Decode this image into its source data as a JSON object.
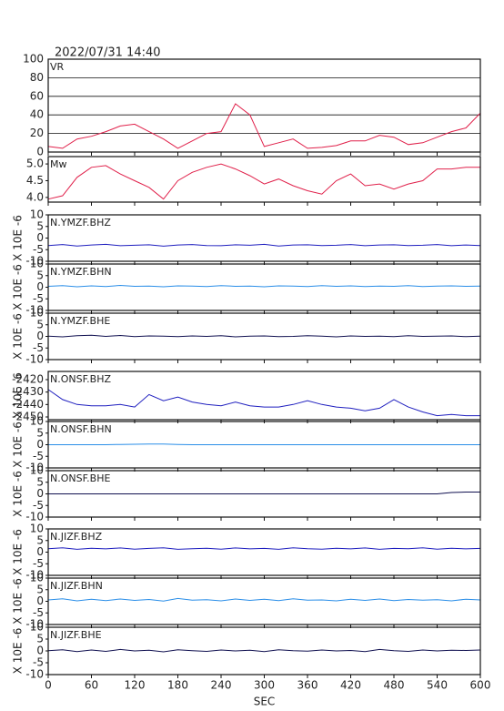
{
  "title": "2022/07/31  14:40",
  "chart_data": [
    {
      "type": "line",
      "title": "VR",
      "color": "#e0204a",
      "grid": true,
      "xlim": [
        0,
        600
      ],
      "xticks": [
        0,
        60,
        120,
        180,
        240,
        300,
        360,
        420,
        480,
        540,
        600
      ],
      "x": [
        0,
        20,
        40,
        60,
        80,
        100,
        120,
        140,
        160,
        180,
        200,
        220,
        240,
        260,
        280,
        300,
        320,
        340,
        360,
        380,
        400,
        420,
        440,
        460,
        480,
        500,
        520,
        540,
        560,
        580,
        600
      ],
      "values": [
        6,
        4,
        14,
        17,
        22,
        28,
        30,
        22,
        14,
        4,
        12,
        20,
        22,
        52,
        40,
        6,
        10,
        14,
        4,
        5,
        7,
        12,
        12,
        18,
        16,
        8,
        10,
        16,
        22,
        26,
        42
      ],
      "ylim": [
        0,
        100
      ],
      "yticks": [
        0,
        20,
        40,
        60,
        80,
        100
      ]
    },
    {
      "type": "line",
      "title": "Mw",
      "color": "#e0204a",
      "grid": false,
      "xlim": [
        0,
        600
      ],
      "xticks": [
        0,
        60,
        120,
        180,
        240,
        300,
        360,
        420,
        480,
        540,
        600
      ],
      "x": [
        0,
        20,
        40,
        60,
        80,
        100,
        120,
        140,
        160,
        180,
        200,
        220,
        240,
        260,
        280,
        300,
        320,
        340,
        360,
        380,
        400,
        420,
        440,
        460,
        480,
        500,
        520,
        540,
        560,
        580,
        600
      ],
      "values": [
        3.95,
        4.05,
        4.6,
        4.9,
        4.95,
        4.7,
        4.5,
        4.3,
        3.95,
        4.5,
        4.75,
        4.9,
        5.0,
        4.85,
        4.65,
        4.4,
        4.55,
        4.35,
        4.2,
        4.1,
        4.5,
        4.7,
        4.35,
        4.4,
        4.25,
        4.4,
        4.5,
        4.85,
        4.85,
        4.9,
        4.9
      ],
      "ylim": [
        3.86,
        5.22
      ],
      "yticks": [
        {
          "value": 4,
          "label": "4.0"
        },
        {
          "value": 4.5,
          "label": "4.5"
        },
        {
          "value": 5,
          "label": "5.0"
        }
      ]
    },
    {
      "type": "line",
      "title": "N.YMZF.BHZ",
      "ylabel": "X 10E -6",
      "color": "#1f1fbf",
      "grid": false,
      "xlim": [
        0,
        600
      ],
      "xticks": [
        0,
        60,
        120,
        180,
        240,
        300,
        360,
        420,
        480,
        540,
        600
      ],
      "x": [
        0,
        20,
        40,
        60,
        80,
        100,
        120,
        140,
        160,
        180,
        200,
        220,
        240,
        260,
        280,
        300,
        320,
        340,
        360,
        380,
        400,
        420,
        440,
        460,
        480,
        500,
        520,
        540,
        560,
        580,
        600
      ],
      "values": [
        -3.2,
        -2.8,
        -3.4,
        -3.0,
        -2.7,
        -3.3,
        -3.1,
        -2.9,
        -3.5,
        -3.0,
        -2.8,
        -3.2,
        -3.3,
        -2.9,
        -3.1,
        -2.7,
        -3.4,
        -3.0,
        -2.9,
        -3.2,
        -3.1,
        -2.8,
        -3.3,
        -3.0,
        -2.9,
        -3.2,
        -3.1,
        -2.8,
        -3.3,
        -3.0,
        -3.2
      ],
      "ylim": [
        -10,
        10
      ],
      "yticks": [
        -10,
        -5,
        0,
        5,
        10
      ]
    },
    {
      "type": "line",
      "title": "N.YMZF.BHN",
      "ylabel": "X 10E -6",
      "color": "#2a8ee8",
      "grid": false,
      "xlim": [
        0,
        600
      ],
      "xticks": [
        0,
        60,
        120,
        180,
        240,
        300,
        360,
        420,
        480,
        540,
        600
      ],
      "x": [
        0,
        20,
        40,
        60,
        80,
        100,
        120,
        140,
        160,
        180,
        200,
        220,
        240,
        260,
        280,
        300,
        320,
        340,
        360,
        380,
        400,
        420,
        440,
        460,
        480,
        500,
        520,
        540,
        560,
        580,
        600
      ],
      "values": [
        0.4,
        0.7,
        0.2,
        0.6,
        0.3,
        0.8,
        0.4,
        0.5,
        0.2,
        0.6,
        0.5,
        0.3,
        0.7,
        0.4,
        0.5,
        0.2,
        0.6,
        0.5,
        0.3,
        0.7,
        0.4,
        0.6,
        0.3,
        0.5,
        0.4,
        0.7,
        0.3,
        0.5,
        0.6,
        0.4,
        0.5
      ],
      "ylim": [
        -10,
        10
      ],
      "yticks": [
        -10,
        -5,
        0,
        5,
        10
      ]
    },
    {
      "type": "line",
      "title": "N.YMZF.BHE",
      "ylabel": "X 10E -6",
      "color": "#101050",
      "grid": false,
      "xlim": [
        0,
        600
      ],
      "xticks": [
        0,
        60,
        120,
        180,
        240,
        300,
        360,
        420,
        480,
        540,
        600
      ],
      "x": [
        0,
        20,
        40,
        60,
        80,
        100,
        120,
        140,
        160,
        180,
        200,
        220,
        240,
        260,
        280,
        300,
        320,
        340,
        360,
        380,
        400,
        420,
        440,
        460,
        480,
        500,
        520,
        540,
        560,
        580,
        600
      ],
      "values": [
        0.1,
        -0.2,
        0.3,
        0.5,
        0.0,
        0.4,
        -0.1,
        0.2,
        0.1,
        -0.1,
        0.2,
        0.0,
        0.3,
        -0.2,
        0.1,
        0.2,
        -0.1,
        0.0,
        0.3,
        0.1,
        -0.2,
        0.2,
        0.0,
        0.1,
        -0.1,
        0.3,
        0.0,
        0.1,
        0.2,
        -0.1,
        0.1
      ],
      "ylim": [
        -10,
        10
      ],
      "yticks": [
        -10,
        -5,
        0,
        5,
        10
      ]
    },
    {
      "type": "line",
      "title": "N.ONSF.BHZ",
      "ylabel": "X 10E -6",
      "color": "#1f1fbf",
      "grid": false,
      "xlim": [
        0,
        600
      ],
      "xticks": [
        0,
        60,
        120,
        180,
        240,
        300,
        360,
        420,
        480,
        540,
        600
      ],
      "x": [
        0,
        20,
        40,
        60,
        80,
        100,
        120,
        140,
        160,
        180,
        200,
        220,
        240,
        260,
        280,
        300,
        320,
        340,
        360,
        380,
        400,
        420,
        440,
        460,
        480,
        500,
        520,
        540,
        560,
        580,
        600
      ],
      "values": [
        -2428,
        -2436,
        -2440,
        -2441,
        -2441,
        -2440,
        -2442,
        -2432,
        -2437,
        -2434,
        -2438,
        -2440,
        -2441,
        -2438,
        -2441,
        -2442,
        -2442,
        -2440,
        -2437,
        -2440,
        -2442,
        -2443,
        -2445,
        -2443,
        -2436,
        -2442,
        -2446,
        -2449,
        -2448,
        -2449,
        -2449
      ],
      "ylim": [
        -2452.2,
        -2413.4
      ],
      "yticks": [
        -2450,
        -2440,
        -2430,
        -2420
      ]
    },
    {
      "type": "line",
      "title": "N.ONSF.BHN",
      "ylabel": "X 10E -6",
      "color": "#2a8ee8",
      "grid": false,
      "xlim": [
        0,
        600
      ],
      "xticks": [
        0,
        60,
        120,
        180,
        240,
        300,
        360,
        420,
        480,
        540,
        600
      ],
      "x": [
        0,
        20,
        40,
        60,
        80,
        100,
        120,
        140,
        160,
        180,
        200,
        220,
        240,
        260,
        280,
        300,
        320,
        340,
        360,
        380,
        400,
        420,
        440,
        460,
        480,
        500,
        520,
        540,
        560,
        580,
        600
      ],
      "values": [
        0,
        0,
        0,
        0,
        0,
        0.1,
        0.2,
        0.3,
        0.3,
        0.1,
        0,
        0,
        0,
        0,
        0,
        0,
        0,
        0,
        0,
        0,
        0,
        0,
        0,
        0,
        0,
        0,
        0,
        0,
        0,
        0,
        0
      ],
      "ylim": [
        -10,
        10
      ],
      "yticks": [
        -10,
        -5,
        0,
        5,
        10
      ]
    },
    {
      "type": "line",
      "title": "N.ONSF.BHE",
      "ylabel": "X 10E -6",
      "color": "#101050",
      "grid": false,
      "xlim": [
        0,
        600
      ],
      "xticks": [
        0,
        60,
        120,
        180,
        240,
        300,
        360,
        420,
        480,
        540,
        600
      ],
      "x": [
        0,
        20,
        40,
        60,
        80,
        100,
        120,
        140,
        160,
        180,
        200,
        220,
        240,
        260,
        280,
        300,
        320,
        340,
        360,
        380,
        400,
        420,
        440,
        460,
        480,
        500,
        520,
        540,
        560,
        580,
        600
      ],
      "values": [
        0,
        0,
        0,
        0,
        0,
        0,
        0,
        0,
        0,
        0,
        0,
        0,
        0,
        0,
        0,
        0,
        0,
        0,
        0,
        0,
        0,
        0,
        0,
        0,
        0,
        0,
        0,
        0,
        0.6,
        0.8,
        0.8
      ],
      "ylim": [
        -10,
        10
      ],
      "yticks": [
        -10,
        -5,
        0,
        5,
        10
      ]
    },
    {
      "type": "line",
      "title": "N.JIZF.BHZ",
      "ylabel": "X 10E -6",
      "color": "#1f1fbf",
      "grid": false,
      "xlim": [
        0,
        600
      ],
      "xticks": [
        0,
        60,
        120,
        180,
        240,
        300,
        360,
        420,
        480,
        540,
        600
      ],
      "x": [
        0,
        20,
        40,
        60,
        80,
        100,
        120,
        140,
        160,
        180,
        200,
        220,
        240,
        260,
        280,
        300,
        320,
        340,
        360,
        380,
        400,
        420,
        440,
        460,
        480,
        500,
        520,
        540,
        560,
        580,
        600
      ],
      "values": [
        1.5,
        1.9,
        1.2,
        1.7,
        1.4,
        1.8,
        1.3,
        1.6,
        1.9,
        1.2,
        1.5,
        1.7,
        1.3,
        1.8,
        1.4,
        1.6,
        1.2,
        1.9,
        1.5,
        1.3,
        1.7,
        1.4,
        1.8,
        1.2,
        1.6,
        1.5,
        1.9,
        1.3,
        1.7,
        1.4,
        1.6
      ],
      "ylim": [
        -10,
        10
      ],
      "yticks": [
        -10,
        -5,
        0,
        5,
        10
      ]
    },
    {
      "type": "line",
      "title": "N.JIZF.BHN",
      "ylabel": "X 10E -6",
      "color": "#2a8ee8",
      "grid": false,
      "xlim": [
        0,
        600
      ],
      "xticks": [
        0,
        60,
        120,
        180,
        240,
        300,
        360,
        420,
        480,
        540,
        600
      ],
      "x": [
        0,
        20,
        40,
        60,
        80,
        100,
        120,
        140,
        160,
        180,
        200,
        220,
        240,
        260,
        280,
        300,
        320,
        340,
        360,
        380,
        400,
        420,
        440,
        460,
        480,
        500,
        520,
        540,
        560,
        580,
        600
      ],
      "values": [
        0.6,
        1.1,
        0.2,
        0.9,
        0.3,
        1.0,
        0.4,
        0.8,
        0.1,
        1.2,
        0.5,
        0.7,
        0.2,
        1.0,
        0.4,
        0.9,
        0.3,
        1.1,
        0.5,
        0.6,
        0.2,
        0.9,
        0.4,
        1.0,
        0.3,
        0.8,
        0.5,
        0.7,
        0.2,
        0.9,
        0.6
      ],
      "ylim": [
        -10,
        10
      ],
      "yticks": [
        -10,
        -5,
        0,
        5,
        10
      ]
    },
    {
      "type": "line",
      "title": "N.JIZF.BHE",
      "ylabel": "X 10E -6",
      "xlabel": "SEC",
      "color": "#101050",
      "grid": false,
      "xlim": [
        0,
        600
      ],
      "xticks": [
        0,
        60,
        120,
        180,
        240,
        300,
        360,
        420,
        480,
        540,
        600
      ],
      "x": [
        0,
        20,
        40,
        60,
        80,
        100,
        120,
        140,
        160,
        180,
        200,
        220,
        240,
        260,
        280,
        300,
        320,
        340,
        360,
        380,
        400,
        420,
        440,
        460,
        480,
        500,
        520,
        540,
        560,
        580,
        600
      ],
      "values": [
        0.1,
        0.5,
        -0.3,
        0.4,
        -0.2,
        0.6,
        0.0,
        0.3,
        -0.4,
        0.5,
        0.1,
        -0.2,
        0.4,
        0.0,
        0.3,
        -0.3,
        0.5,
        0.1,
        -0.1,
        0.4,
        0.0,
        0.2,
        -0.3,
        0.6,
        0.1,
        -0.2,
        0.4,
        0.0,
        0.3,
        0.2,
        0.4
      ],
      "ylim": [
        -10,
        10
      ],
      "yticks": [
        -10,
        -5,
        0,
        5,
        10
      ]
    }
  ]
}
